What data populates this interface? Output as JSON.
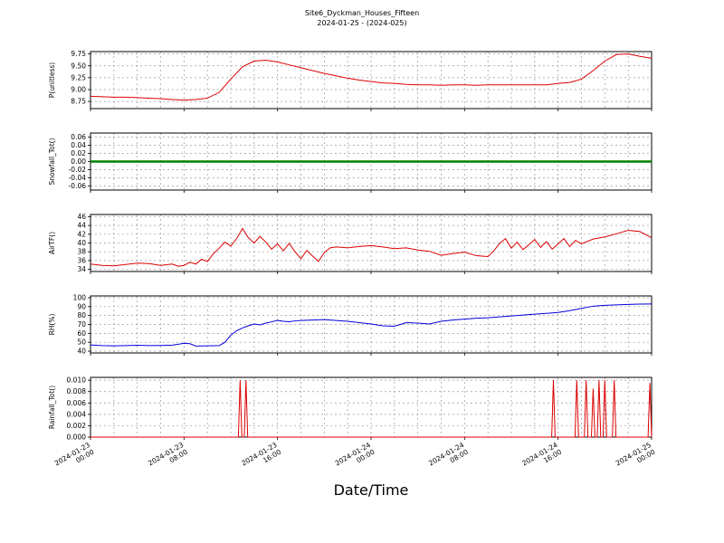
{
  "title_line1": "Site6_Dyckman_Houses_Fifteen",
  "title_line2": "2024-01-25 - (2024-025)",
  "xlabel": "Date/Time",
  "x_axis": {
    "range": [
      0,
      48
    ],
    "grid_step": 2,
    "ticks": [
      {
        "t": 0,
        "date": "2024-01-23",
        "time": "00:00"
      },
      {
        "t": 8,
        "date": "2024-01-23",
        "time": "08:00"
      },
      {
        "t": 16,
        "date": "2024-01-23",
        "time": "16:00"
      },
      {
        "t": 24,
        "date": "2024-01-24",
        "time": "00:00"
      },
      {
        "t": 32,
        "date": "2024-01-24",
        "time": "08:00"
      },
      {
        "t": 40,
        "date": "2024-01-24",
        "time": "16:00"
      },
      {
        "t": 48,
        "date": "2024-01-25",
        "time": "00:00"
      }
    ]
  },
  "chart_data": [
    {
      "id": "p",
      "type": "line",
      "ylabel": "P(unitless)",
      "color": "#dd0000",
      "linewidth": 1,
      "ylim": [
        8.6,
        9.8
      ],
      "yticks": [
        9.75,
        9.5,
        9.25,
        9.0,
        8.75
      ],
      "ytick_labels": [
        "9.75",
        "9.50",
        "9.25",
        "9.00",
        "8.75"
      ],
      "x": [
        0,
        1,
        2,
        3,
        4,
        5,
        6,
        7,
        8,
        9,
        10,
        11,
        12,
        13,
        14,
        15,
        16,
        17,
        18,
        19,
        20,
        21,
        22,
        23,
        24,
        25,
        26,
        27,
        28,
        29,
        30,
        31,
        32,
        33,
        34,
        35,
        36,
        37,
        38,
        39,
        40,
        41,
        42,
        43,
        44,
        45,
        46,
        47,
        48
      ],
      "y": [
        8.86,
        8.85,
        8.84,
        8.84,
        8.83,
        8.82,
        8.81,
        8.79,
        8.78,
        8.79,
        8.82,
        8.94,
        9.22,
        9.48,
        9.6,
        9.62,
        9.58,
        9.52,
        9.46,
        9.4,
        9.34,
        9.29,
        9.24,
        9.2,
        9.17,
        9.14,
        9.13,
        9.11,
        9.1,
        9.1,
        9.09,
        9.1,
        9.1,
        9.09,
        9.1,
        9.1,
        9.1,
        9.1,
        9.1,
        9.1,
        9.13,
        9.15,
        9.22,
        9.4,
        9.6,
        9.74,
        9.75,
        9.7,
        9.66
      ]
    },
    {
      "id": "snowfall",
      "type": "line",
      "ylabel": "Snowfall_Tot()",
      "color": "#008000",
      "linewidth": 2.5,
      "ylim": [
        -0.07,
        0.07
      ],
      "yticks": [
        0.06,
        0.04,
        0.02,
        0.0,
        -0.02,
        -0.04,
        -0.06
      ],
      "ytick_labels": [
        "0.06",
        "0.04",
        "0.02",
        "0.00",
        "-0.02",
        "-0.04",
        "-0.06"
      ],
      "x": [
        0,
        48
      ],
      "y": [
        0,
        0
      ]
    },
    {
      "id": "airtf",
      "type": "line",
      "ylabel": "AirTF()",
      "color": "#dd0000",
      "linewidth": 1,
      "ylim": [
        33.5,
        46.5
      ],
      "yticks": [
        46,
        44,
        42,
        40,
        38,
        36,
        34
      ],
      "ytick_labels": [
        "46",
        "44",
        "42",
        "40",
        "38",
        "36",
        "34"
      ],
      "x": [
        0,
        1,
        2,
        3,
        4,
        5,
        6,
        7,
        7.5,
        8,
        8.5,
        9,
        9.5,
        10,
        10.5,
        11,
        11.5,
        12,
        12.5,
        13,
        13.5,
        14,
        14.5,
        15,
        15.5,
        16,
        16.5,
        17,
        17.5,
        18,
        18.5,
        19,
        19.5,
        20,
        20.5,
        21,
        22,
        23,
        24,
        25,
        26,
        27,
        28,
        29,
        30,
        31,
        32,
        33,
        34,
        34.5,
        35,
        35.5,
        36,
        36.5,
        37,
        37.5,
        38,
        38.5,
        39,
        39.5,
        40,
        40.5,
        41,
        41.5,
        42,
        43,
        44,
        45,
        46,
        47,
        48
      ],
      "y": [
        35.2,
        34.9,
        34.8,
        35.1,
        35.4,
        35.3,
        34.9,
        35.2,
        34.7,
        34.9,
        35.6,
        35.2,
        36.3,
        35.8,
        37.5,
        38.8,
        40.2,
        39.3,
        41.0,
        43.3,
        41.2,
        40.0,
        41.5,
        40.2,
        38.6,
        39.8,
        38.2,
        39.9,
        38.0,
        36.4,
        38.3,
        37.0,
        35.8,
        37.8,
        38.9,
        39.1,
        38.9,
        39.2,
        39.4,
        39.1,
        38.7,
        38.9,
        38.4,
        38.1,
        37.2,
        37.6,
        37.9,
        37.1,
        36.9,
        38.2,
        39.9,
        41.0,
        38.8,
        40.2,
        38.5,
        39.6,
        40.8,
        39.0,
        40.3,
        38.6,
        39.8,
        41.0,
        39.2,
        40.6,
        39.8,
        40.9,
        41.4,
        42.1,
        42.9,
        42.6,
        41.2
      ]
    },
    {
      "id": "rh",
      "type": "line",
      "ylabel": "RH(%)",
      "color": "#0000dd",
      "linewidth": 1,
      "ylim": [
        38,
        102
      ],
      "yticks": [
        100,
        90,
        80,
        70,
        60,
        50,
        40
      ],
      "ytick_labels": [
        "100",
        "90",
        "80",
        "70",
        "60",
        "50",
        "40"
      ],
      "x": [
        0,
        1,
        2,
        3,
        4,
        5,
        6,
        7,
        8,
        8.5,
        9,
        10,
        11,
        11.5,
        12,
        12.5,
        13,
        13.5,
        14,
        14.5,
        15,
        15.5,
        16,
        16.5,
        17,
        17.5,
        18,
        19,
        20,
        21,
        22,
        23,
        24,
        25,
        26,
        26.5,
        27,
        28,
        29,
        29.5,
        30,
        31,
        32,
        33,
        34,
        35,
        36,
        37,
        38,
        39,
        40,
        41,
        42,
        43,
        44,
        45,
        46,
        47,
        48
      ],
      "y": [
        47,
        46.3,
        46,
        46.2,
        46.6,
        46.2,
        46.4,
        46.8,
        48.8,
        48.4,
        45.8,
        46,
        46.2,
        50,
        58,
        63,
        66,
        68.5,
        70.5,
        69.5,
        71.5,
        73,
        74.5,
        73.5,
        73,
        74,
        74.5,
        75,
        75.5,
        74.5,
        73.5,
        72,
        70.5,
        68.5,
        68,
        70,
        72,
        71.5,
        70.5,
        72,
        73.5,
        75,
        76,
        77,
        77.5,
        78.5,
        79.5,
        80.5,
        81.5,
        82.5,
        83.5,
        85.5,
        88,
        90.5,
        91.5,
        92,
        92.5,
        92.8,
        93
      ]
    },
    {
      "id": "rainfall",
      "type": "line",
      "ylabel": "Rainfall_Tot()",
      "color": "#dd0000",
      "linewidth": 1,
      "ylim": [
        0,
        0.0105
      ],
      "yticks": [
        0.01,
        0.008,
        0.006,
        0.004,
        0.002,
        0.0
      ],
      "ytick_labels": [
        "0.010",
        "0.008",
        "0.006",
        "0.004",
        "0.002",
        "0.000"
      ],
      "x": [
        0,
        12.65,
        12.8,
        12.95,
        13.15,
        13.3,
        13.45,
        39.45,
        39.6,
        39.75,
        41.45,
        41.6,
        41.75,
        42.25,
        42.4,
        42.55,
        42.85,
        43,
        43.15,
        43.35,
        43.5,
        43.65,
        43.85,
        44,
        44.15,
        44.65,
        44.8,
        44.95,
        47.7,
        47.85,
        48
      ],
      "y": [
        0,
        0,
        0.01,
        0,
        0,
        0.01,
        0,
        0,
        0.01,
        0,
        0,
        0.01,
        0,
        0,
        0.01,
        0,
        0,
        0.0085,
        0,
        0,
        0.01,
        0,
        0,
        0.01,
        0,
        0,
        0.01,
        0,
        0,
        0.0095,
        0
      ]
    }
  ]
}
